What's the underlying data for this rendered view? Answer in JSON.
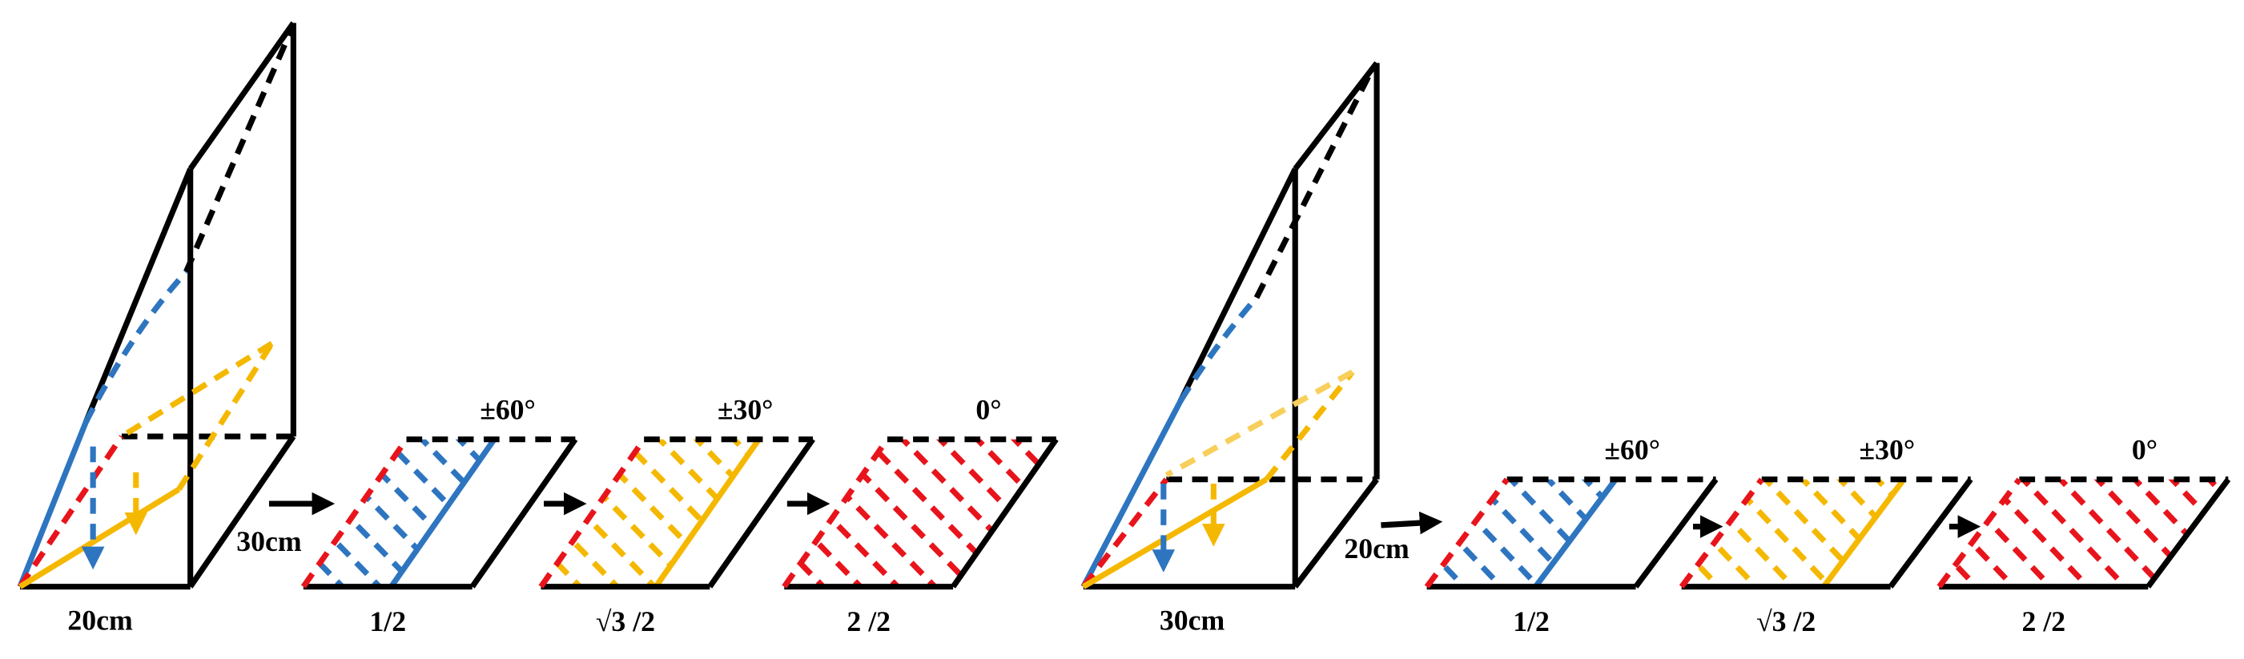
{
  "panels": [
    {
      "base_label": "20cm",
      "side_label": "30cm",
      "stages": [
        {
          "angle": "±60°",
          "fraction": "1/2"
        },
        {
          "angle": "±30°",
          "fraction": "√3 /2"
        },
        {
          "angle": "0°",
          "fraction": "2 /2"
        }
      ]
    },
    {
      "base_label": "30cm",
      "side_label": "20cm",
      "stages": [
        {
          "angle": "±60°",
          "fraction": "1/2"
        },
        {
          "angle": "±30°",
          "fraction": "√3 /2"
        },
        {
          "angle": "0°",
          "fraction": "2 /2"
        }
      ]
    }
  ]
}
